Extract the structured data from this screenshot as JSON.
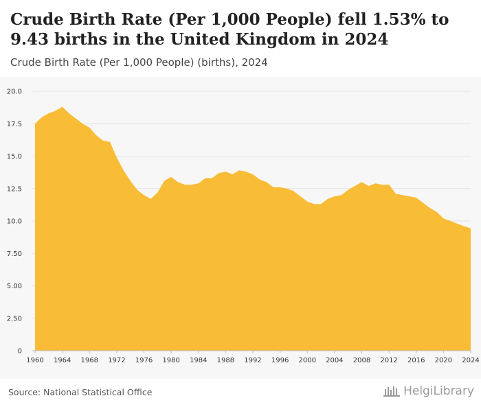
{
  "header": {
    "title": "Crude Birth Rate (Per 1,000 People) fell 1.53% to 9.43 births in the United Kingdom in 2024",
    "subtitle": "Crude Birth Rate (Per 1,000 People) (births), 2024"
  },
  "footer": {
    "source": "Source: National Statistical Office",
    "brand": "HelgiLibrary"
  },
  "colors": {
    "area": "#f9bc36",
    "plot_background": "#f7f7f7",
    "grid": "#e3e3e3"
  },
  "chart_data": {
    "type": "area",
    "title": "Crude Birth Rate (Per 1,000 People) fell 1.53% to 9.43 births in the United Kingdom in 2024",
    "subtitle": "Crude Birth Rate (Per 1,000 People) (births), 2024",
    "xlabel": "",
    "ylabel": "",
    "xlim": [
      1960,
      2024
    ],
    "ylim": [
      0,
      20
    ],
    "grid": true,
    "y_ticks": [
      "0",
      "2.50",
      "5.00",
      "7.50",
      "10.0",
      "12.5",
      "15.0",
      "17.5",
      "20.0"
    ],
    "y_tick_values": [
      0,
      2.5,
      5,
      7.5,
      10,
      12.5,
      15,
      17.5,
      20
    ],
    "x_ticks": [
      "1960",
      "1964",
      "1968",
      "1972",
      "1976",
      "1980",
      "1984",
      "1988",
      "1992",
      "1996",
      "2000",
      "2004",
      "2008",
      "2012",
      "2016",
      "2020",
      "2024"
    ],
    "x_tick_values": [
      1960,
      1964,
      1968,
      1972,
      1976,
      1980,
      1984,
      1988,
      1992,
      1996,
      2000,
      2004,
      2008,
      2012,
      2016,
      2020,
      2024
    ],
    "series": [
      {
        "x": [
          1960,
          1961,
          1962,
          1963,
          1964,
          1965,
          1966,
          1967,
          1968,
          1969,
          1970,
          1971,
          1972,
          1973,
          1974,
          1975,
          1976,
          1977,
          1978,
          1979,
          1980,
          1981,
          1982,
          1983,
          1984,
          1985,
          1986,
          1987,
          1988,
          1989,
          1990,
          1991,
          1992,
          1993,
          1994,
          1995,
          1996,
          1997,
          1998,
          1999,
          2000,
          2001,
          2002,
          2003,
          2004,
          2005,
          2006,
          2007,
          2008,
          2009,
          2010,
          2011,
          2012,
          2013,
          2014,
          2015,
          2016,
          2017,
          2018,
          2019,
          2020,
          2021,
          2022,
          2023,
          2024
        ],
        "values": [
          17.5,
          18.0,
          18.3,
          18.5,
          18.8,
          18.3,
          17.9,
          17.5,
          17.2,
          16.6,
          16.2,
          16.1,
          14.9,
          13.9,
          13.1,
          12.4,
          12.0,
          11.7,
          12.2,
          13.1,
          13.4,
          13.0,
          12.8,
          12.8,
          12.9,
          13.3,
          13.3,
          13.7,
          13.8,
          13.6,
          13.9,
          13.8,
          13.6,
          13.2,
          13.0,
          12.6,
          12.6,
          12.5,
          12.3,
          11.9,
          11.5,
          11.3,
          11.3,
          11.7,
          11.9,
          12.0,
          12.4,
          12.7,
          13.0,
          12.7,
          12.9,
          12.8,
          12.8,
          12.1,
          12.0,
          11.9,
          11.8,
          11.4,
          11.0,
          10.7,
          10.2,
          10.0,
          9.8,
          9.6,
          9.43
        ]
      }
    ]
  }
}
